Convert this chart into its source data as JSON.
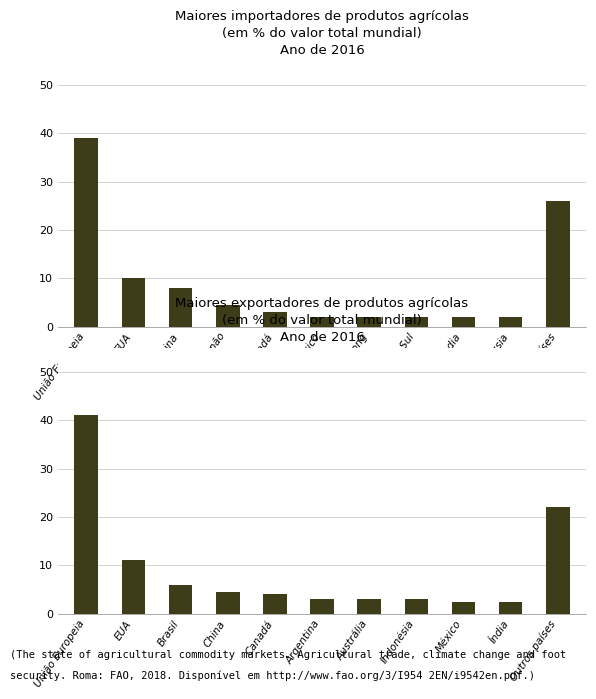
{
  "chart1": {
    "title": "Maiores importadores de produtos agrícolas\n(em % do valor total mundial)\nAno de 2016",
    "categories": [
      "União Europeia",
      "EUA",
      "China",
      "Japão",
      "Canadá",
      "México",
      "Hong Kong",
      "Coreia do Sul",
      "Índia",
      "Rússia",
      "Outros países"
    ],
    "values": [
      39,
      10,
      8,
      4.5,
      3,
      2,
      2,
      2,
      2,
      2,
      26
    ],
    "bar_color": "#3d3d1a",
    "ylim": [
      0,
      55
    ],
    "yticks": [
      0,
      10,
      20,
      30,
      40,
      50
    ]
  },
  "chart2": {
    "title": "Maiores exportadores de produtos agrícolas\n(em % do valor total mundial)\nAno de 2016",
    "categories": [
      "União Europeia",
      "EUA",
      "Brasil",
      "China",
      "Canadá",
      "Argentina",
      "Austrália",
      "Indonésia",
      "México",
      "Índia",
      "Outros países"
    ],
    "values": [
      41,
      11,
      6,
      4.5,
      4,
      3,
      3,
      3,
      2.5,
      2.5,
      22
    ],
    "bar_color": "#3d3d1a",
    "ylim": [
      0,
      55
    ],
    "yticks": [
      0,
      10,
      20,
      30,
      40,
      50
    ]
  },
  "footnote_line1": "(The state of agricultural commodity markets. Agricultural trade, climate change and foot",
  "footnote_line2": "security. Roma: FAO, 2018. Disponível em http://www.fao.org/3/I954 2EN/i9542en.pdf.)",
  "bg_color": "#ffffff",
  "chart_bg_color": "#ffffff",
  "title_fontsize": 9.5,
  "tick_fontsize": 7.5,
  "ytick_fontsize": 8,
  "footnote_fontsize": 7.5
}
